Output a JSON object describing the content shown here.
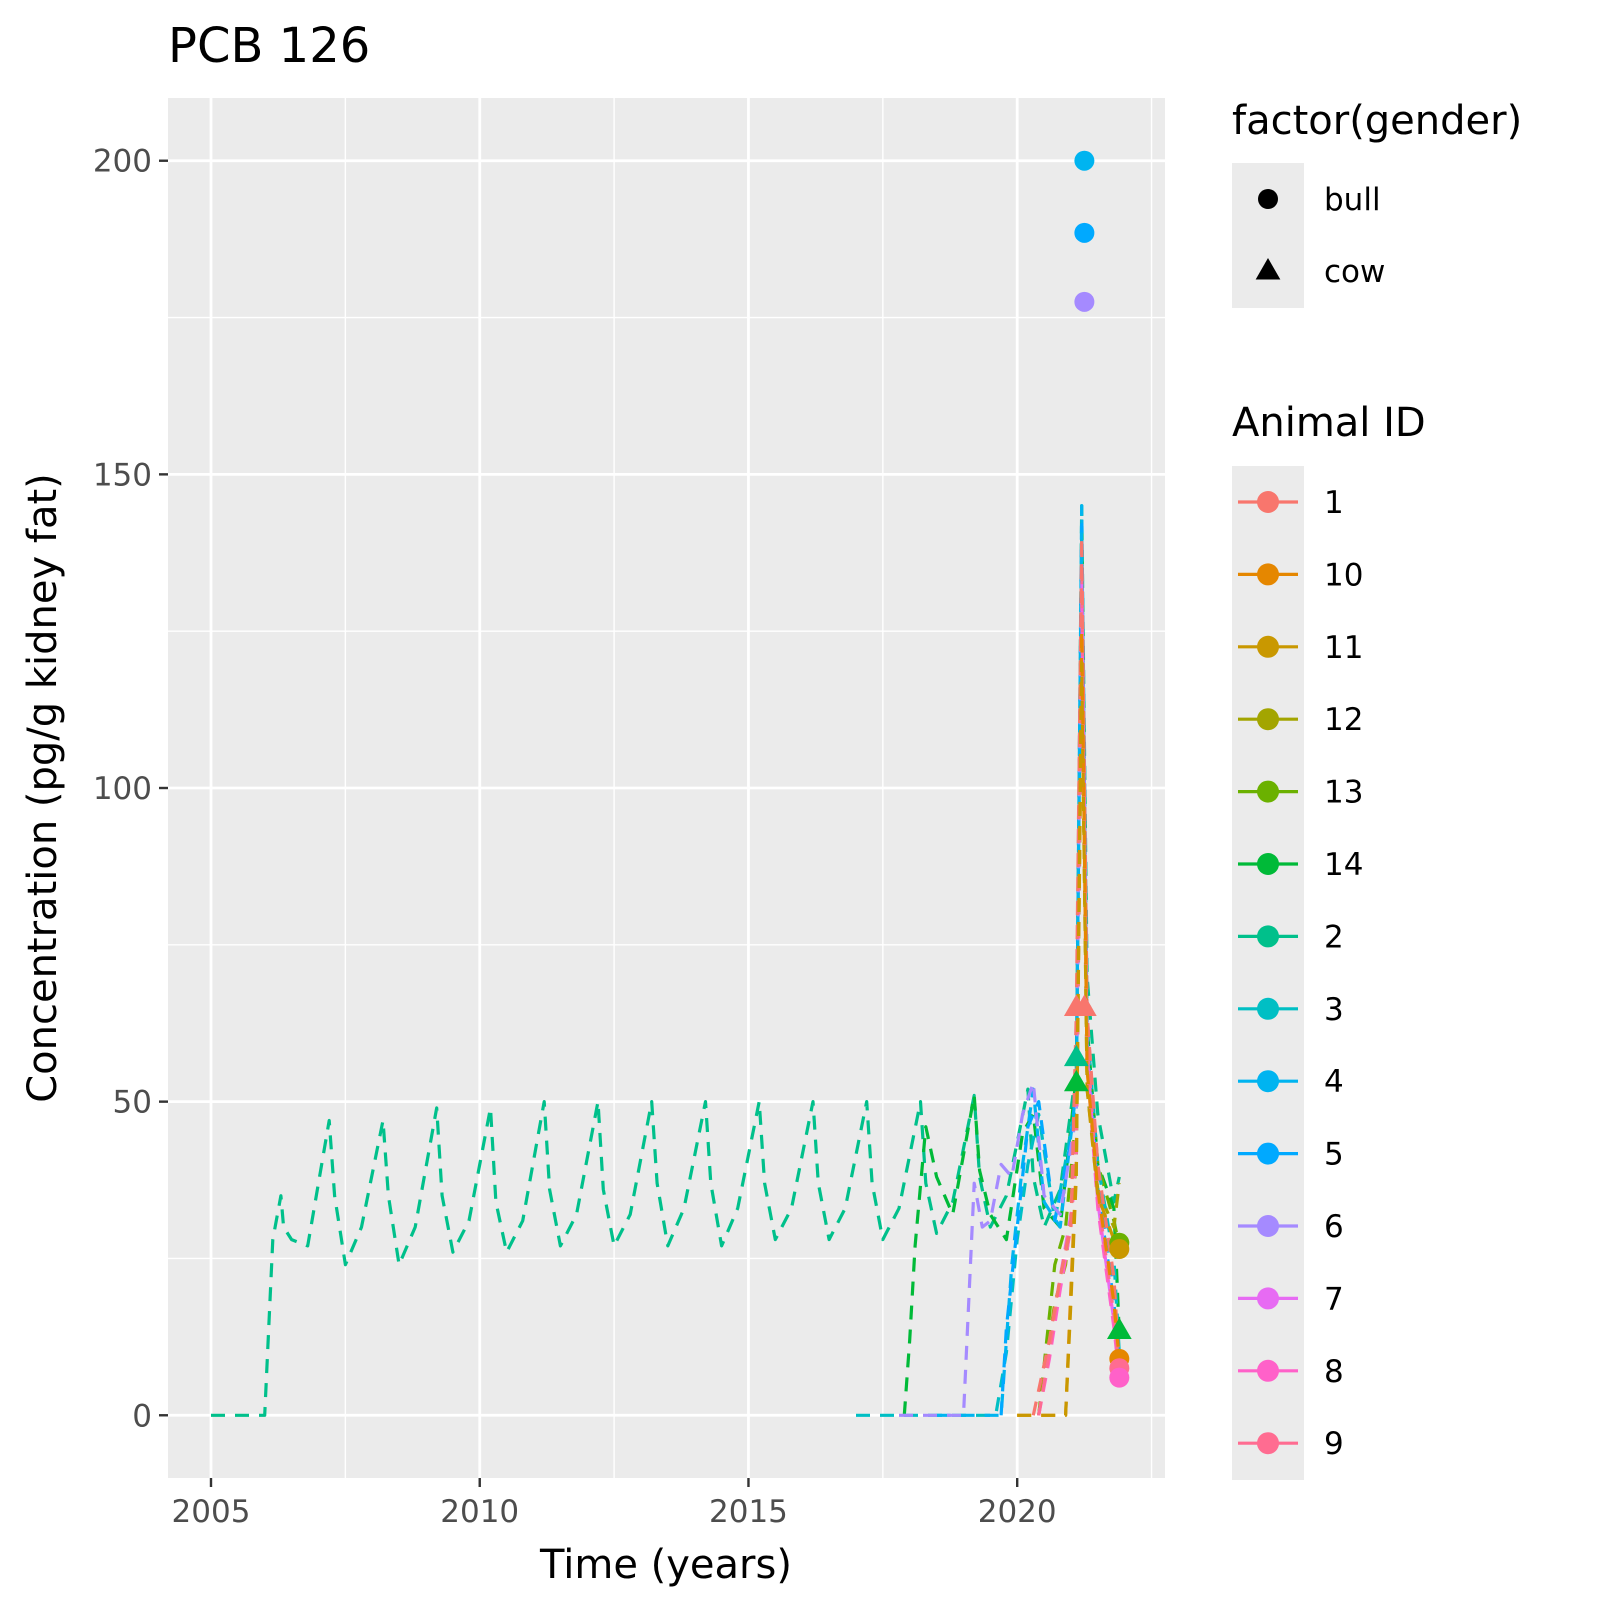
{
  "chart_data": {
    "type": "line",
    "title": "PCB 126",
    "xlabel": "Time (years)",
    "ylabel": "Concentration (pg/g kidney fat)",
    "xlim": [
      2004.2,
      2022.75
    ],
    "ylim": [
      -10,
      210
    ],
    "x_ticks": [
      2005,
      2010,
      2015,
      2020
    ],
    "x_tick_labels": [
      "2005",
      "2010",
      "2015",
      "2020"
    ],
    "y_ticks": [
      0,
      50,
      100,
      150,
      200
    ],
    "y_tick_labels": [
      "0",
      "50",
      "100",
      "150",
      "200"
    ],
    "grid": true,
    "legend_placement": "right",
    "shape_legend": {
      "title": "factor(gender)",
      "items": [
        {
          "label": "bull",
          "shape": "circle"
        },
        {
          "label": "cow",
          "shape": "triangle"
        }
      ]
    },
    "color_legend": {
      "title": "Animal ID",
      "items": [
        {
          "label": "1",
          "color": "#F8766D"
        },
        {
          "label": "10",
          "color": "#E58700"
        },
        {
          "label": "11",
          "color": "#C99800"
        },
        {
          "label": "12",
          "color": "#A3A500"
        },
        {
          "label": "13",
          "color": "#6BB100"
        },
        {
          "label": "14",
          "color": "#00BA38"
        },
        {
          "label": "2",
          "color": "#00C08B"
        },
        {
          "label": "3",
          "color": "#00BFC4"
        },
        {
          "label": "4",
          "color": "#00B4F0"
        },
        {
          "label": "5",
          "color": "#00A9FF"
        },
        {
          "label": "6",
          "color": "#A58AFF"
        },
        {
          "label": "7",
          "color": "#E76BF3"
        },
        {
          "label": "8",
          "color": "#FF61C9"
        },
        {
          "label": "9",
          "color": "#FF6C91"
        }
      ]
    },
    "series": [
      {
        "name": "2",
        "color": "#00C08B",
        "x": [
          2005.0,
          2006.0,
          2006.15,
          2006.3,
          2006.35,
          2006.5,
          2006.8,
          2007.2,
          2007.3,
          2007.5,
          2007.8,
          2008.2,
          2008.3,
          2008.5,
          2008.8,
          2009.2,
          2009.3,
          2009.5,
          2009.8,
          2010.2,
          2010.3,
          2010.5,
          2010.8,
          2011.2,
          2011.3,
          2011.5,
          2011.8,
          2012.2,
          2012.3,
          2012.5,
          2012.8,
          2013.2,
          2013.3,
          2013.5,
          2013.8,
          2014.2,
          2014.3,
          2014.5,
          2014.8,
          2015.2,
          2015.3,
          2015.5,
          2015.8,
          2016.2,
          2016.3,
          2016.5,
          2016.8,
          2017.2,
          2017.3,
          2017.5,
          2017.8,
          2018.2,
          2018.3,
          2018.5,
          2018.8,
          2019.2,
          2019.3,
          2019.5,
          2019.8,
          2020.2,
          2020.3,
          2020.5,
          2020.8,
          2021.1,
          2021.2,
          2021.3,
          2021.5,
          2021.8,
          2021.9
        ],
        "y": [
          0,
          0,
          28,
          35,
          30,
          28,
          27,
          47,
          35,
          24,
          30,
          47,
          35,
          24,
          30,
          49,
          35,
          26,
          31,
          49,
          34,
          26,
          31,
          50,
          36,
          27,
          32,
          50,
          36,
          27,
          32,
          50,
          37,
          27,
          33,
          50,
          37,
          27,
          33,
          50,
          37,
          28,
          33,
          50,
          37,
          28,
          33,
          50,
          37,
          28,
          33,
          50,
          37,
          29,
          34,
          51,
          38,
          30,
          35,
          52,
          38,
          30,
          36,
          55,
          145,
          70,
          48,
          34,
          38
        ]
      },
      {
        "name": "14",
        "color": "#00BA38",
        "x": [
          2017.9,
          2018.0,
          2018.1,
          2018.3,
          2018.5,
          2018.8,
          2019.2,
          2019.3,
          2019.5,
          2019.8,
          2020.1,
          2020.3,
          2020.5,
          2020.8,
          2021.1,
          2021.2,
          2021.3,
          2021.5,
          2021.8,
          2021.9
        ],
        "y": [
          0,
          12,
          27,
          46,
          38,
          32,
          51,
          39,
          32,
          28,
          45,
          48,
          33,
          30,
          54,
          140,
          62,
          40,
          33,
          13
        ]
      },
      {
        "name": "13",
        "color": "#6BB100",
        "x": [
          2020.4,
          2020.5,
          2020.7,
          2020.9,
          2021.1,
          2021.2,
          2021.3,
          2021.5,
          2021.8,
          2021.9
        ],
        "y": [
          0,
          8,
          24,
          30,
          48,
          130,
          58,
          40,
          31,
          27
        ]
      },
      {
        "name": "12",
        "color": "#A3A500",
        "x": [
          2020.4,
          2020.5,
          2020.7,
          2020.9,
          2021.1,
          2021.2,
          2021.3,
          2021.5,
          2021.8,
          2021.9
        ],
        "y": [
          0,
          6,
          18,
          24,
          40,
          120,
          52,
          36,
          30,
          37
        ]
      },
      {
        "name": "3",
        "color": "#00BFC4",
        "x": [
          2017.0,
          2018.5,
          2019.0,
          2019.6,
          2019.8,
          2020.0,
          2020.2,
          2020.4,
          2020.7,
          2021.1,
          2021.2,
          2021.3,
          2021.5,
          2021.8,
          2021.9
        ],
        "y": [
          0,
          0,
          0,
          0,
          10,
          28,
          40,
          48,
          31,
          50,
          140,
          62,
          40,
          25,
          10
        ]
      },
      {
        "name": "4",
        "color": "#00B4F0",
        "x": [
          2018.5,
          2019.2,
          2019.5,
          2019.7,
          2019.9,
          2020.1,
          2020.3,
          2020.5,
          2020.8,
          2021.1,
          2021.2,
          2021.3,
          2021.5,
          2021.8,
          2021.9
        ],
        "y": [
          0,
          0,
          0,
          0,
          24,
          40,
          52,
          34,
          30,
          52,
          145,
          64,
          38,
          20,
          8
        ]
      },
      {
        "name": "5",
        "color": "#00A9FF",
        "x": [
          2019.7,
          2019.8,
          2020.0,
          2020.2,
          2020.4,
          2020.7,
          2021.1,
          2021.2,
          2021.3,
          2021.5,
          2021.8,
          2021.9
        ],
        "y": [
          0,
          14,
          30,
          46,
          50,
          31,
          48,
          142,
          60,
          36,
          18,
          7
        ]
      },
      {
        "name": "6",
        "color": "#A58AFF",
        "x": [
          2017.8,
          2018.5,
          2019.0,
          2019.2,
          2019.35,
          2019.5,
          2019.7,
          2019.9,
          2020.1,
          2020.3,
          2020.5,
          2020.8,
          2021.1,
          2021.2,
          2021.3,
          2021.5,
          2021.8,
          2021.9
        ],
        "y": [
          0,
          0,
          0,
          37,
          30,
          31,
          40,
          38,
          48,
          53,
          35,
          32,
          48,
          138,
          60,
          36,
          18,
          7
        ]
      },
      {
        "name": "7",
        "color": "#E76BF3",
        "x": [
          2020.4,
          2020.6,
          2020.8,
          2021.0,
          2021.1,
          2021.2,
          2021.3,
          2021.5,
          2021.8,
          2021.9
        ],
        "y": [
          0,
          10,
          22,
          32,
          44,
          135,
          58,
          34,
          15,
          6
        ]
      },
      {
        "name": "8",
        "color": "#FF61C9",
        "x": [
          2020.4,
          2020.6,
          2020.8,
          2021.0,
          2021.1,
          2021.2,
          2021.3,
          2021.5,
          2021.8,
          2021.9
        ],
        "y": [
          0,
          9,
          20,
          30,
          42,
          130,
          56,
          33,
          14,
          6
        ]
      },
      {
        "name": "9",
        "color": "#FF6C91",
        "x": [
          2020.4,
          2020.6,
          2020.8,
          2021.0,
          2021.1,
          2021.2,
          2021.3,
          2021.5,
          2021.8,
          2021.9
        ],
        "y": [
          0,
          10,
          22,
          31,
          45,
          136,
          60,
          35,
          16,
          7
        ]
      },
      {
        "name": "1",
        "color": "#F8766D",
        "x": [
          2020.3,
          2020.6,
          2020.8,
          2021.0,
          2021.1,
          2021.2,
          2021.3,
          2021.5,
          2021.8,
          2021.9
        ],
        "y": [
          0,
          12,
          22,
          30,
          64,
          140,
          64,
          40,
          22,
          8
        ]
      },
      {
        "name": "10",
        "color": "#E58700",
        "x": [
          2020.0,
          2020.5,
          2020.9,
          2021.0,
          2021.1,
          2021.2,
          2021.3,
          2021.5,
          2021.8,
          2021.9
        ],
        "y": [
          0,
          0,
          0,
          20,
          40,
          125,
          55,
          36,
          18,
          9
        ]
      },
      {
        "name": "11",
        "color": "#C99800",
        "x": [
          2020.0,
          2020.5,
          2020.9,
          2021.0,
          2021.1,
          2021.2,
          2021.3,
          2021.5,
          2021.8,
          2021.9
        ],
        "y": [
          0,
          0,
          0,
          18,
          38,
          120,
          52,
          35,
          28,
          26
        ]
      }
    ],
    "points": [
      {
        "id": "4",
        "x": 2021.25,
        "y": 200,
        "shape": "circle",
        "color": "#00B4F0"
      },
      {
        "id": "5",
        "x": 2021.25,
        "y": 188.5,
        "shape": "circle",
        "color": "#00A9FF"
      },
      {
        "id": "6",
        "x": 2021.25,
        "y": 177.5,
        "shape": "circle",
        "color": "#A58AFF"
      },
      {
        "id": "1",
        "x": 2021.1,
        "y": 65,
        "shape": "triangle",
        "color": "#F8766D"
      },
      {
        "id": "1",
        "x": 2021.25,
        "y": 65,
        "shape": "triangle",
        "color": "#F8766D"
      },
      {
        "id": "2",
        "x": 2021.1,
        "y": 57,
        "shape": "triangle",
        "color": "#00C08B"
      },
      {
        "id": "14",
        "x": 2021.1,
        "y": 53,
        "shape": "triangle",
        "color": "#00BA38"
      },
      {
        "id": "13",
        "x": 2021.9,
        "y": 27.5,
        "shape": "circle",
        "color": "#6BB100"
      },
      {
        "id": "11",
        "x": 2021.9,
        "y": 26.5,
        "shape": "circle",
        "color": "#C99800"
      },
      {
        "id": "14",
        "x": 2021.9,
        "y": 13.5,
        "shape": "triangle",
        "color": "#00BA38"
      },
      {
        "id": "10",
        "x": 2021.9,
        "y": 9,
        "shape": "circle",
        "color": "#E58700"
      },
      {
        "id": "9",
        "x": 2021.9,
        "y": 7.5,
        "shape": "circle",
        "color": "#FF6C91"
      },
      {
        "id": "8",
        "x": 2021.9,
        "y": 6,
        "shape": "circle",
        "color": "#FF61C9"
      }
    ]
  }
}
